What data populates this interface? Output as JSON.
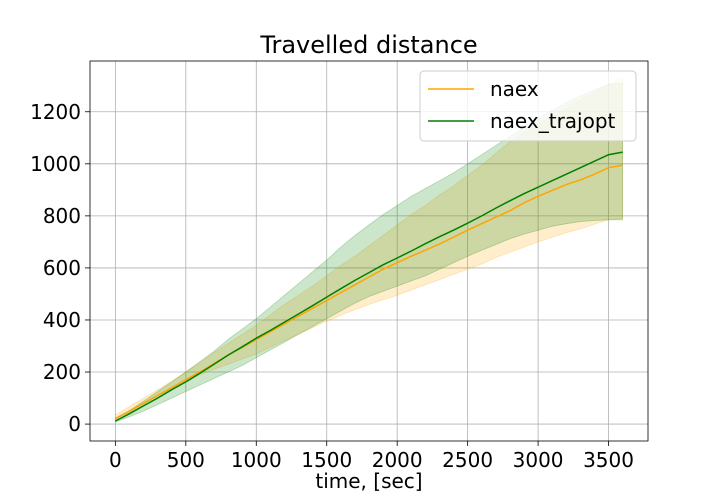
{
  "chart_data": {
    "type": "line",
    "title": "Travelled distance",
    "xlabel": "time, [sec]",
    "ylabel": "",
    "xlim": [
      -180,
      3780
    ],
    "ylim": [
      -65,
      1395
    ],
    "xticks": [
      0,
      500,
      1000,
      1500,
      2000,
      2500,
      3000,
      3500
    ],
    "yticks": [
      0,
      200,
      400,
      600,
      800,
      1000,
      1200
    ],
    "grid": true,
    "legend_position": "top-right",
    "x": [
      0,
      100,
      200,
      300,
      400,
      500,
      600,
      700,
      800,
      900,
      1000,
      1100,
      1200,
      1300,
      1400,
      1500,
      1600,
      1700,
      1800,
      1900,
      2000,
      2100,
      2200,
      2300,
      2400,
      2500,
      2600,
      2700,
      2800,
      2900,
      3000,
      3100,
      3200,
      3300,
      3400,
      3500,
      3600
    ],
    "series": [
      {
        "name": "naex",
        "color": "#ffa500",
        "fill_color": "#ffa500",
        "fill_opacity": 0.2,
        "values": [
          22,
          50,
          80,
          110,
          140,
          170,
          200,
          232,
          265,
          295,
          325,
          355,
          385,
          415,
          445,
          475,
          505,
          535,
          565,
          595,
          620,
          645,
          668,
          692,
          718,
          745,
          770,
          795,
          820,
          850,
          875,
          898,
          920,
          938,
          960,
          985,
          995
        ],
        "upper": [
          35,
          68,
          100,
          132,
          165,
          200,
          235,
          275,
          310,
          345,
          380,
          420,
          460,
          495,
          530,
          570,
          610,
          645,
          685,
          725,
          765,
          805,
          840,
          880,
          915,
          955,
          995,
          1040,
          1085,
          1120,
          1155,
          1185,
          1215,
          1245,
          1275,
          1305,
          1330
        ],
        "lower": [
          20,
          45,
          70,
          100,
          130,
          160,
          190,
          210,
          230,
          250,
          270,
          295,
          320,
          345,
          370,
          395,
          418,
          440,
          460,
          478,
          495,
          515,
          535,
          555,
          575,
          595,
          615,
          640,
          660,
          680,
          700,
          718,
          735,
          750,
          768,
          785,
          790
        ]
      },
      {
        "name": "naex_trajopt",
        "color": "#008000",
        "fill_color": "#008000",
        "fill_opacity": 0.2,
        "values": [
          12,
          40,
          70,
          100,
          132,
          162,
          195,
          230,
          265,
          297,
          330,
          360,
          392,
          423,
          455,
          488,
          520,
          552,
          582,
          612,
          638,
          665,
          693,
          720,
          745,
          772,
          800,
          830,
          858,
          885,
          910,
          935,
          960,
          985,
          1010,
          1035,
          1045
        ],
        "upper": [
          18,
          52,
          88,
          125,
          162,
          200,
          240,
          280,
          325,
          365,
          405,
          450,
          495,
          540,
          585,
          630,
          680,
          725,
          765,
          805,
          840,
          875,
          905,
          935,
          965,
          1000,
          1035,
          1070,
          1105,
          1140,
          1175,
          1205,
          1235,
          1260,
          1285,
          1305,
          1310
        ],
        "lower": [
          8,
          28,
          50,
          75,
          100,
          125,
          150,
          175,
          200,
          225,
          255,
          285,
          315,
          345,
          375,
          405,
          435,
          465,
          490,
          510,
          530,
          550,
          570,
          595,
          620,
          645,
          668,
          690,
          712,
          730,
          745,
          760,
          770,
          778,
          782,
          785,
          785
        ]
      }
    ]
  }
}
